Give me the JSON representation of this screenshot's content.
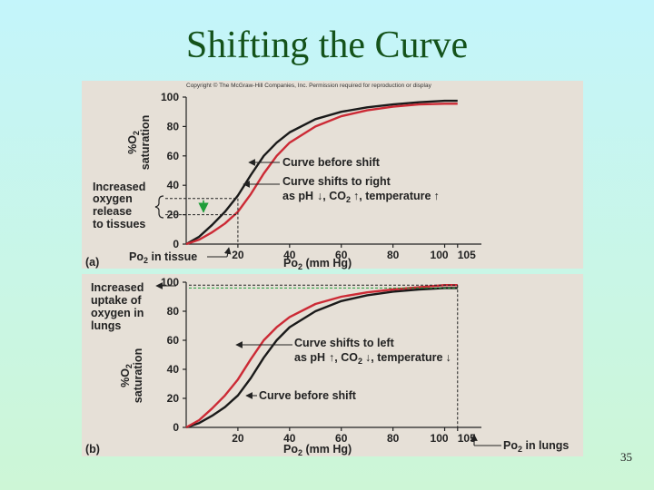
{
  "slide": {
    "title": "Shifting the Curve",
    "page_number": "35"
  },
  "figure": {
    "copyright": "Copyright © The McGraw-Hill Companies, Inc. Permission required for reproduction or display"
  },
  "colors": {
    "background_top": "#c4f5fb",
    "background_bottom": "#cdf6d6",
    "panel": "#e6e0d7",
    "curve_before": "#1a1a1a",
    "curve_shifted": "#cc2a35",
    "arrow_green": "#1f9e3a",
    "title": "#14521a"
  },
  "chart_data": [
    {
      "type": "line",
      "panel": "a",
      "panel_label": "(a)",
      "xlabel": "Po2 (mm Hg)",
      "ylabel": "%O2 saturation",
      "xlim": [
        0,
        110
      ],
      "ylim": [
        0,
        100
      ],
      "x_ticks": [
        20,
        40,
        60,
        80,
        100,
        105
      ],
      "y_ticks": [
        0,
        20,
        40,
        60,
        80,
        100
      ],
      "series": [
        {
          "name": "Curve before shift",
          "x": [
            0,
            5,
            10,
            15,
            20,
            25,
            30,
            35,
            40,
            50,
            60,
            70,
            80,
            90,
            100,
            105
          ],
          "y": [
            0,
            5,
            13,
            22,
            33,
            47,
            60,
            69,
            76,
            85,
            90,
            93,
            95,
            96.5,
            97.5,
            97.5
          ]
        },
        {
          "name": "Curve shifts to right",
          "x": [
            0,
            5,
            10,
            15,
            20,
            25,
            30,
            35,
            40,
            50,
            60,
            70,
            80,
            90,
            100,
            105
          ],
          "y": [
            0,
            3,
            8,
            14,
            22,
            34,
            48,
            60,
            69,
            80,
            87,
            91,
            93.5,
            95,
            95.5,
            95.5
          ]
        }
      ],
      "annotations": {
        "shift_label": "Curve before shift",
        "shifted_label": "Curve shifts to right",
        "conditions": "as pH",
        "conditions_co2": ", CO",
        "conditions_temp": ", temperature",
        "release_label": [
          "Increased",
          "oxygen",
          "release",
          "to tissues"
        ],
        "tissue_label": "Po",
        "tissue_label_suffix": " in tissue",
        "release_range": [
          20,
          31
        ],
        "tissue_po2": 20
      }
    },
    {
      "type": "line",
      "panel": "b",
      "panel_label": "(b)",
      "xlabel": "Po2 (mm Hg)",
      "ylabel": "%O2 saturation",
      "xlim": [
        0,
        110
      ],
      "ylim": [
        0,
        100
      ],
      "x_ticks": [
        20,
        40,
        60,
        80,
        100,
        105
      ],
      "y_ticks": [
        0,
        20,
        40,
        60,
        80,
        100
      ],
      "series": [
        {
          "name": "Curve before shift",
          "x": [
            0,
            5,
            10,
            15,
            20,
            25,
            30,
            35,
            40,
            50,
            60,
            70,
            80,
            90,
            100,
            105
          ],
          "y": [
            0,
            3,
            8,
            14,
            22,
            34,
            48,
            60,
            69,
            80,
            87,
            91,
            93.5,
            95,
            96,
            96
          ]
        },
        {
          "name": "Curve shifts to left",
          "x": [
            0,
            5,
            10,
            15,
            20,
            25,
            30,
            35,
            40,
            50,
            60,
            70,
            80,
            90,
            100,
            105
          ],
          "y": [
            0,
            5,
            13,
            22,
            33,
            47,
            60,
            69,
            76,
            85,
            90,
            93,
            95,
            96.5,
            98,
            98
          ]
        }
      ],
      "annotations": {
        "shift_label": "Curve before shift",
        "shifted_label": "Curve shifts to left",
        "conditions": "as pH",
        "conditions_co2": ", CO",
        "conditions_temp": ", temperature",
        "uptake_label": [
          "Increased",
          "uptake of",
          "oxygen in",
          "lungs"
        ],
        "lung_label": "Po",
        "lung_label_suffix": " in lungs",
        "lung_po2": 105
      }
    }
  ]
}
